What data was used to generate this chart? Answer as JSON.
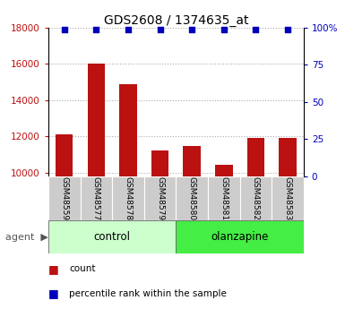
{
  "title": "GDS2608 / 1374635_at",
  "samples": [
    "GSM48559",
    "GSM48577",
    "GSM48578",
    "GSM48579",
    "GSM48580",
    "GSM48581",
    "GSM48582",
    "GSM48583"
  ],
  "counts": [
    12100,
    16000,
    14900,
    11200,
    11450,
    10450,
    11900,
    11900
  ],
  "percentile_ranks": [
    99,
    99,
    99,
    99,
    99,
    99,
    99,
    99
  ],
  "ylim_left": [
    9800,
    18000
  ],
  "ylim_right": [
    0,
    100
  ],
  "yticks_left": [
    10000,
    12000,
    14000,
    16000,
    18000
  ],
  "yticks_right": [
    0,
    25,
    50,
    75,
    100
  ],
  "yticklabels_right": [
    "0",
    "25",
    "50",
    "75",
    "100%"
  ],
  "bar_color": "#bb1111",
  "dot_color": "#0000bb",
  "groups": [
    {
      "label": "control",
      "start": 0,
      "end": 3,
      "color": "#ccffcc"
    },
    {
      "label": "olanzapine",
      "start": 4,
      "end": 7,
      "color": "#44ee44"
    }
  ],
  "agent_label": "agent",
  "legend_count_label": "count",
  "legend_prank_label": "percentile rank within the sample",
  "grid_color": "#aaaaaa",
  "sample_box_color": "#cccccc"
}
